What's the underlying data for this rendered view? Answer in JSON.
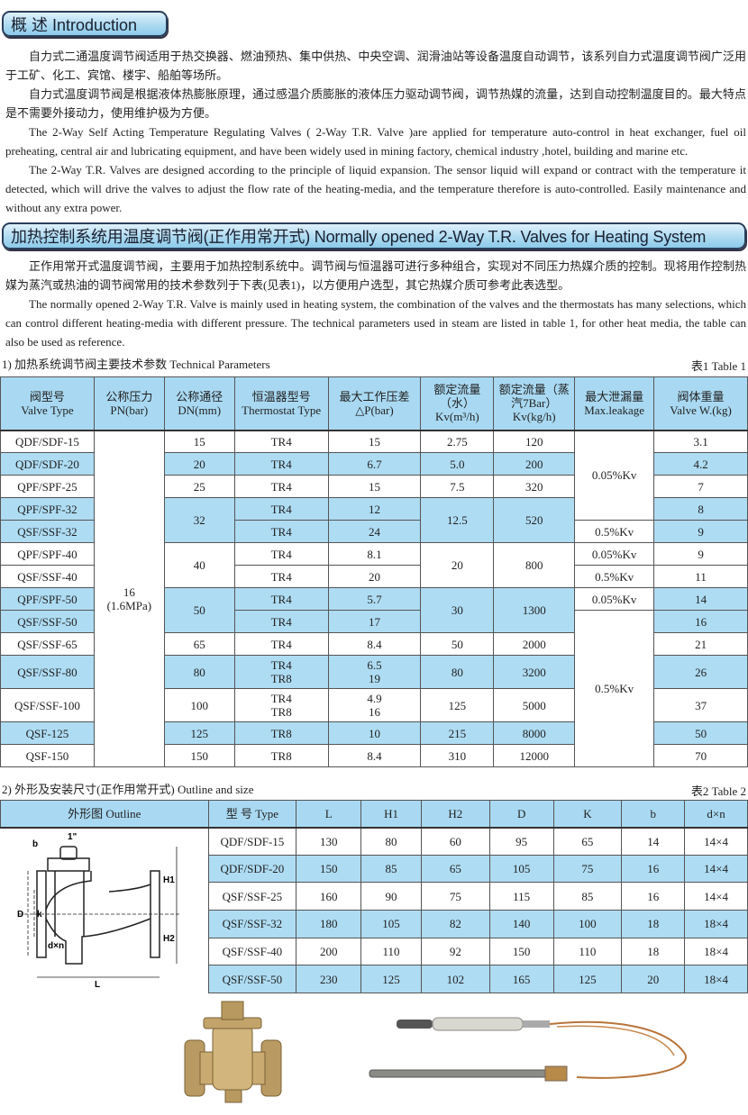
{
  "intro": {
    "title": "概 述 Introduction",
    "paragraphs": [
      "自力式二通温度调节阀适用于热交换器、燃油预热、集中供热、中央空调、润滑油站等设备温度自动调节，该系列自力式温度调节阀广泛用于工矿、化工、宾馆、楼宇、船舶等场所。",
      "自力式温度调节阀是根据液体热膨胀原理，通过感温介质膨胀的液体压力驱动调节阀，调节热媒的流量，达到自动控制温度目的。最大特点是不需要外接动力，使用维护极为方便。",
      "The 2-Way Self Acting Temperature Regulating Valves ( 2-Way T.R. Valve )are applied for temperature auto-control in heat exchanger, fuel oil preheating, central air and lubricating equipment,  and have been widely used in mining factory, chemical industry ,hotel, building and marine etc.",
      "The 2-Way T.R. Valves are designed according to the principle of liquid expansion. The sensor liquid will expand or contract with the temperature it detected, which will drive the valves to adjust the flow rate of the heating-media, and the temperature therefore is auto-controlled. Easily maintenance and without any extra power."
    ]
  },
  "heating": {
    "title": "加热控制系统用温度调节阀(正作用常开式) Normally opened 2-Way T.R. Valves for Heating System",
    "paragraphs": [
      "正作用常开式温度调节阀，主要用于加热控制系统中。调节阀与恒温器可进行多种组合，实现对不同压力热媒介质的控制。现将用作控制热媒为蒸汽或热油的调节阀常用的技术参数列于下表(见表1)，以方便用户选型，其它热媒介质可参考此表选型。",
      "The normally opened 2-Way T.R. Valve is mainly used in heating system, the combination of the valves and the thermostats has many selections, which can control different heating-media with different pressure. The technical parameters used in steam are listed in table 1, for other heat media, the table can also be used as reference."
    ]
  },
  "table1": {
    "caption": "1) 加热系统调节阀主要技术参数  Technical Parameters",
    "label": "表1   Table 1",
    "headers": [
      "阀型号\nValve Type",
      "公称压力\nPN(bar)",
      "公称通径\nDN(mm)",
      "恒温器型号\nThermostat Type",
      "最大工作压差\n△P(bar)",
      "额定流量\n（水）\nKv(m³/h)",
      "额定流量（蒸汽7Bar）\nKv(kg/h)",
      "最大泄漏量\nMax.leakage",
      "阀体重量\nValve W.(kg)"
    ],
    "rows": [
      {
        "blue": false,
        "cells": [
          {
            "t": "QDF/SDF-15"
          },
          {
            "t": "16\n(1.6MPa)",
            "rs": 14,
            "blue": false
          },
          {
            "t": "15"
          },
          {
            "t": "TR4"
          },
          {
            "t": "15"
          },
          {
            "t": "2.75"
          },
          {
            "t": "120"
          },
          {
            "t": "0.05%Kv",
            "rs": 4,
            "blue": false
          },
          {
            "t": "3.1"
          }
        ]
      },
      {
        "blue": true,
        "cells": [
          {
            "t": "QDF/SDF-20"
          },
          {
            "t": "20"
          },
          {
            "t": "TR4"
          },
          {
            "t": "6.7"
          },
          {
            "t": "5.0"
          },
          {
            "t": "200"
          },
          {
            "t": "4.2"
          }
        ]
      },
      {
        "blue": false,
        "cells": [
          {
            "t": "QPF/SPF-25"
          },
          {
            "t": "25"
          },
          {
            "t": "TR4"
          },
          {
            "t": "15"
          },
          {
            "t": "7.5"
          },
          {
            "t": "320"
          },
          {
            "t": "7"
          }
        ]
      },
      {
        "blue": true,
        "cells": [
          {
            "t": "QPF/SPF-32"
          },
          {
            "t": "32",
            "rs": 2
          },
          {
            "t": "TR4"
          },
          {
            "t": "12"
          },
          {
            "t": "12.5",
            "rs": 2
          },
          {
            "t": "520",
            "rs": 2
          },
          {
            "t": "8"
          }
        ]
      },
      {
        "blue": true,
        "cells": [
          {
            "t": "QSF/SSF-32"
          },
          {
            "t": "TR4"
          },
          {
            "t": "24"
          },
          {
            "t": "0.5%Kv",
            "blue": false
          },
          {
            "t": "9"
          }
        ]
      },
      {
        "blue": false,
        "cells": [
          {
            "t": "QPF/SPF-40"
          },
          {
            "t": "40",
            "rs": 2
          },
          {
            "t": "TR4"
          },
          {
            "t": "8.1"
          },
          {
            "t": "20",
            "rs": 2
          },
          {
            "t": "800",
            "rs": 2
          },
          {
            "t": "0.05%Kv"
          },
          {
            "t": "9"
          }
        ]
      },
      {
        "blue": false,
        "cells": [
          {
            "t": "QSF/SSF-40"
          },
          {
            "t": "TR4"
          },
          {
            "t": "20"
          },
          {
            "t": "0.5%Kv"
          },
          {
            "t": "11"
          }
        ]
      },
      {
        "blue": true,
        "cells": [
          {
            "t": "QPF/SPF-50"
          },
          {
            "t": "50",
            "rs": 2
          },
          {
            "t": "TR4"
          },
          {
            "t": "5.7"
          },
          {
            "t": "30",
            "rs": 2
          },
          {
            "t": "1300",
            "rs": 2
          },
          {
            "t": "0.05%Kv",
            "blue": false
          },
          {
            "t": "14"
          }
        ]
      },
      {
        "blue": true,
        "cells": [
          {
            "t": "QSF/SSF-50"
          },
          {
            "t": "TR4"
          },
          {
            "t": "17"
          },
          {
            "t": "0.5%Kv",
            "rs": 6,
            "blue": false
          },
          {
            "t": "16"
          }
        ]
      },
      {
        "blue": false,
        "cells": [
          {
            "t": "QSF/SSF-65"
          },
          {
            "t": "65"
          },
          {
            "t": "TR4"
          },
          {
            "t": "8.4"
          },
          {
            "t": "50"
          },
          {
            "t": "2000"
          },
          {
            "t": "21"
          }
        ]
      },
      {
        "blue": true,
        "tall": true,
        "cells": [
          {
            "t": "QSF/SSF-80"
          },
          {
            "t": "80"
          },
          {
            "t": "TR4\nTR8"
          },
          {
            "t": "6.5\n19"
          },
          {
            "t": "80"
          },
          {
            "t": "3200"
          },
          {
            "t": "26"
          }
        ]
      },
      {
        "blue": false,
        "tall": true,
        "cells": [
          {
            "t": "QSF/SSF-100"
          },
          {
            "t": "100"
          },
          {
            "t": "TR4\nTR8"
          },
          {
            "t": "4.9\n16"
          },
          {
            "t": "125"
          },
          {
            "t": "5000"
          },
          {
            "t": "37"
          }
        ]
      },
      {
        "blue": true,
        "cells": [
          {
            "t": "QSF-125"
          },
          {
            "t": "125"
          },
          {
            "t": "TR8"
          },
          {
            "t": "10"
          },
          {
            "t": "215"
          },
          {
            "t": "8000"
          },
          {
            "t": "50"
          }
        ]
      },
      {
        "blue": false,
        "cells": [
          {
            "t": "QSF-150"
          },
          {
            "t": "150"
          },
          {
            "t": "TR8"
          },
          {
            "t": "8.4"
          },
          {
            "t": "310"
          },
          {
            "t": "12000"
          },
          {
            "t": "70"
          }
        ]
      }
    ]
  },
  "table2": {
    "caption": "2) 外形及安装尺寸(正作用常开式)  Outline and size",
    "label": "表2   Table 2",
    "headers": [
      "外形图  Outline",
      "型 号 Type",
      "L",
      "H1",
      "H2",
      "D",
      "K",
      "b",
      "d×n"
    ],
    "diagram_labels": {
      "b": "b",
      "top": "1\"",
      "H1": "H1",
      "H2": "H2",
      "D": "D",
      "k": "k",
      "dxn": "d×n",
      "L": "L"
    },
    "rows": [
      [
        "QDF/SDF-15",
        "130",
        "80",
        "60",
        "95",
        "65",
        "14",
        "14×4"
      ],
      [
        "QDF/SDF-20",
        "150",
        "85",
        "65",
        "105",
        "75",
        "16",
        "14×4"
      ],
      [
        "QSF/SSF-25",
        "160",
        "90",
        "75",
        "115",
        "85",
        "16",
        "14×4"
      ],
      [
        "QSF/SSF-32",
        "180",
        "105",
        "82",
        "140",
        "100",
        "18",
        "18×4"
      ],
      [
        "QSF/SSF-40",
        "200",
        "110",
        "92",
        "150",
        "110",
        "18",
        "18×4"
      ],
      [
        "QSF/SSF-50",
        "230",
        "125",
        "102",
        "165",
        "125",
        "20",
        "18×4"
      ]
    ]
  },
  "colors": {
    "header_blue": "#a9d9f2",
    "row_blue": "#aedcf3"
  }
}
